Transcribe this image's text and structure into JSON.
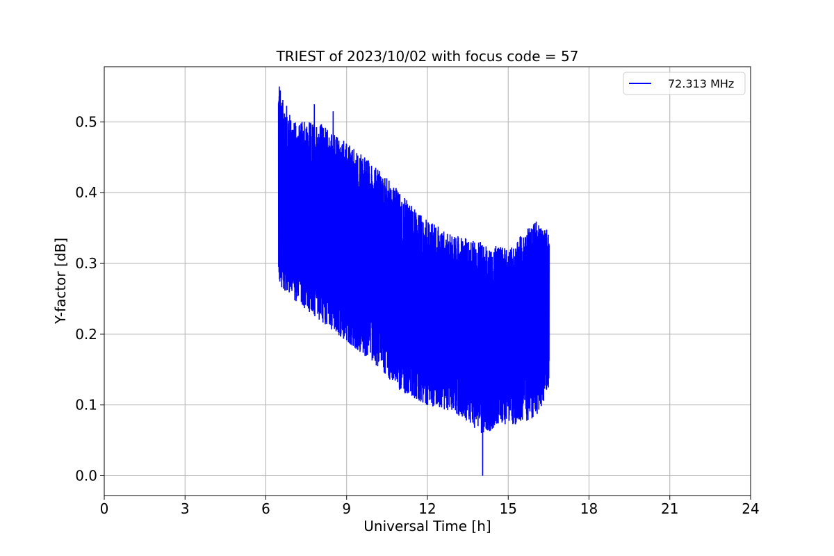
{
  "chart_data": {
    "type": "line",
    "title": "TRIEST of 2023/10/02 with focus code = 57",
    "xlabel": "Universal Time [h]",
    "ylabel": "Y-factor [dB]",
    "xlim": [
      0,
      24
    ],
    "ylim": [
      -0.028,
      0.578
    ],
    "xticks": [
      0,
      3,
      6,
      9,
      12,
      15,
      18,
      21,
      24
    ],
    "yticks": [
      0.0,
      0.1,
      0.2,
      0.3,
      0.4,
      0.5
    ],
    "ytick_labels": [
      "0.0",
      "0.1",
      "0.2",
      "0.3",
      "0.4",
      "0.5"
    ],
    "grid": true,
    "legend_position": "top-right",
    "series": [
      {
        "name": "72.313 MHz",
        "color": "#0000ff",
        "x_range": [
          6.47,
          16.52
        ],
        "envelope": {
          "x": [
            6.5,
            7.0,
            8.0,
            9.0,
            10.0,
            11.0,
            12.0,
            13.0,
            14.0,
            15.0,
            16.0,
            16.5
          ],
          "upper": [
            0.55,
            0.5,
            0.5,
            0.47,
            0.44,
            0.4,
            0.36,
            0.34,
            0.33,
            0.32,
            0.36,
            0.35
          ],
          "lower": [
            0.27,
            0.25,
            0.22,
            0.19,
            0.16,
            0.12,
            0.1,
            0.09,
            0.06,
            0.07,
            0.08,
            0.12
          ]
        },
        "notable_points": [
          {
            "x": 6.5,
            "y": 0.55
          },
          {
            "x": 7.8,
            "y": 0.525
          },
          {
            "x": 8.5,
            "y": 0.515
          },
          {
            "x": 14.05,
            "y": 0.0
          }
        ]
      }
    ]
  }
}
